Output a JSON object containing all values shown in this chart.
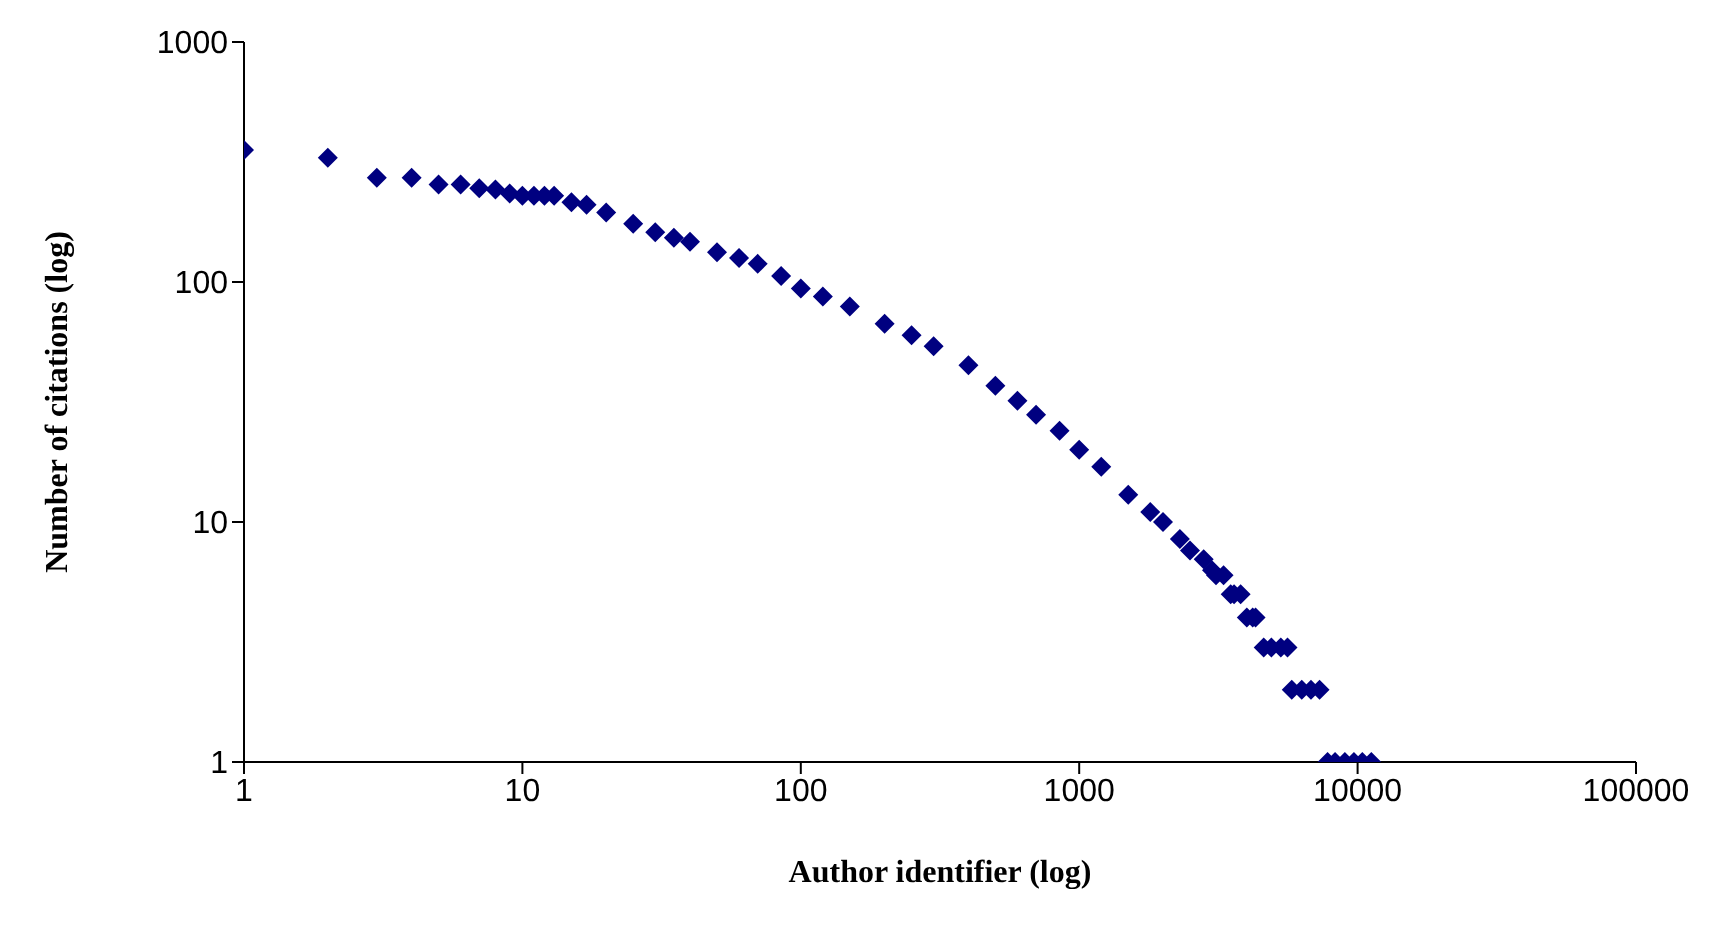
{
  "chart_data": {
    "type": "scatter",
    "xlabel": "Author identifier (log)",
    "ylabel": "Number of citations (log)",
    "log": "xy",
    "marker": "diamond",
    "grid": false,
    "legend": false,
    "xlim": [
      1,
      100000
    ],
    "xticks": [
      1,
      10,
      100,
      1000,
      10000,
      100000
    ],
    "ylim": [
      1,
      1000
    ],
    "yticks": [
      1,
      10,
      100,
      1000
    ],
    "series": [
      {
        "color": "#000080",
        "x": [
          1,
          2,
          3,
          4,
          5,
          6,
          7,
          8,
          9,
          10,
          11,
          12,
          13,
          15,
          17,
          20,
          25,
          30,
          35,
          40,
          50,
          60,
          70,
          85,
          100,
          120,
          150,
          200,
          250,
          300,
          400,
          500,
          600,
          700,
          850,
          1000,
          1200,
          1500,
          1800,
          2000,
          2300,
          2500,
          2800,
          3000,
          3100,
          3300,
          3500,
          3600,
          3800,
          4000,
          4200,
          4300,
          4600,
          4900,
          5300,
          5600,
          5800,
          6300,
          6800,
          7300,
          7800,
          8300,
          9000,
          9700,
          10400,
          11200
        ],
        "values": [
          355,
          329,
          272,
          272,
          255,
          255,
          246,
          243,
          234,
          229,
          229,
          229,
          229,
          215,
          210,
          195,
          175,
          161,
          153,
          147,
          133,
          126,
          119,
          106,
          94,
          87,
          79,
          67,
          60,
          54,
          45,
          37,
          32,
          28,
          24,
          20,
          17,
          13,
          11,
          10,
          8.5,
          7.6,
          7,
          6.3,
          6,
          6,
          5,
          5,
          5,
          4,
          4,
          4,
          3,
          3,
          3,
          3,
          2,
          2,
          2,
          2,
          1,
          1,
          1,
          1,
          1,
          1
        ]
      }
    ]
  }
}
